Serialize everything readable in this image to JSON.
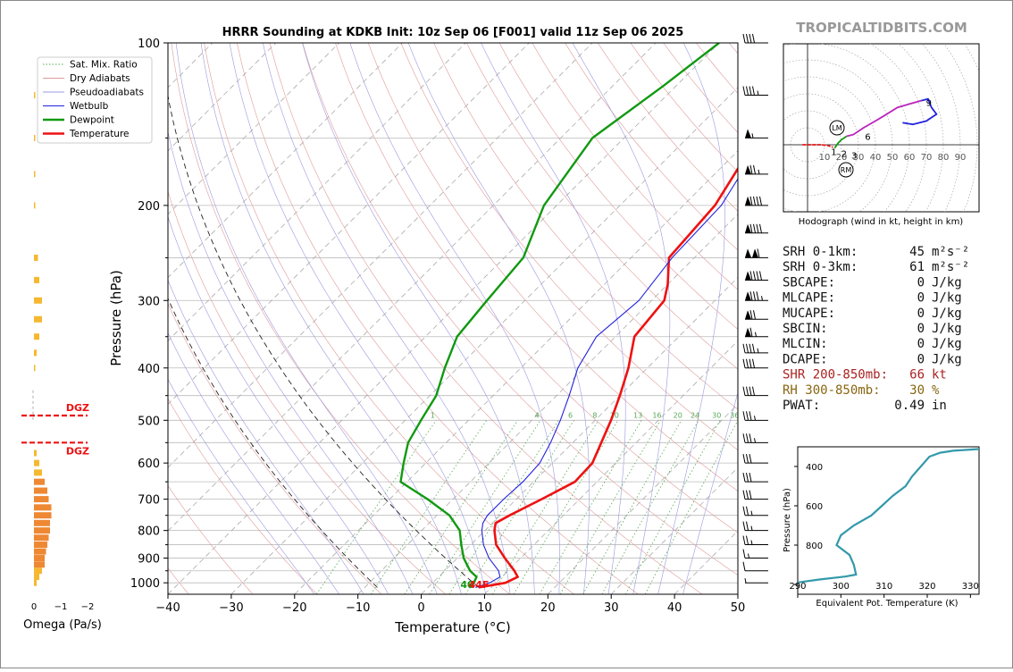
{
  "title": "HRRR Sounding at KDKB Init: 10z Sep 06 [F001] valid 11z Sep 06 2025",
  "watermark": "TROPICALTIDBITS.COM",
  "colors": {
    "temperature": "#ee1111",
    "dewpoint": "#119911",
    "wetbulb": "#2222dd",
    "dry_adiabat": "#e09a9a",
    "pseudo_adiabat": "#9a9ae0",
    "mixing_ratio": "#55aa55",
    "dgz": "#ee1111",
    "omega_bar": "#f0a030",
    "theta_e": "#3399aa",
    "shr": "#aa2222",
    "rh": "#886611"
  },
  "legend": [
    {
      "label": "Sat. Mix. Ratio",
      "style": "dotted",
      "color": "#55aa55"
    },
    {
      "label": "Dry Adiabats",
      "style": "thin",
      "color": "#e09a9a"
    },
    {
      "label": "Pseudoadiabats",
      "style": "thin",
      "color": "#9a9ae0"
    },
    {
      "label": "Wetbulb",
      "style": "thin",
      "color": "#2222dd"
    },
    {
      "label": "Dewpoint",
      "style": "thick",
      "color": "#119911"
    },
    {
      "label": "Temperature",
      "style": "thick",
      "color": "#ee1111"
    }
  ],
  "skewt": {
    "xlabel": "Temperature (°C)",
    "ylabel": "Pressure (hPa)",
    "xlim": [
      -40,
      50
    ],
    "ylim_hpa": [
      1050,
      100
    ],
    "x_ticks": [
      -40,
      -30,
      -20,
      -10,
      0,
      10,
      20,
      30,
      40,
      50
    ],
    "x_tick_labels": [
      "−40",
      "−30",
      "−20",
      "−10",
      "0",
      "10",
      "20",
      "30",
      "40",
      "50"
    ],
    "p_ticks": [
      1000,
      900,
      800,
      700,
      600,
      500,
      400,
      300,
      200,
      100
    ],
    "p_tick_labels": [
      "1000",
      "900",
      "800",
      "700",
      "600",
      "500",
      "400",
      "300",
      "200",
      "100"
    ],
    "mixing_ratio_labels": [
      "1",
      "4",
      "6",
      "8",
      "10",
      "13",
      "16",
      "20",
      "24",
      "30",
      "36"
    ],
    "lcl_label": "4044F"
  },
  "chart_data": [
    {
      "type": "line",
      "name": "skew-t",
      "x_axis": "temperature_C",
      "y_axis": "pressure_hPa",
      "series": [
        {
          "name": "Temperature",
          "points": [
            [
              1020,
              8
            ],
            [
              1000,
              11.5
            ],
            [
              975,
              12.5
            ],
            [
              950,
              11
            ],
            [
              900,
              7.5
            ],
            [
              850,
              4
            ],
            [
              800,
              1.5
            ],
            [
              775,
              0.5
            ],
            [
              750,
              1.5
            ],
            [
              700,
              4
            ],
            [
              650,
              6.5
            ],
            [
              600,
              6.3
            ],
            [
              550,
              4.5
            ],
            [
              500,
              2.5
            ],
            [
              450,
              0
            ],
            [
              400,
              -3
            ],
            [
              350,
              -7
            ],
            [
              300,
              -8
            ],
            [
              280,
              -10
            ],
            [
              250,
              -14
            ],
            [
              200,
              -15
            ],
            [
              150,
              -19
            ],
            [
              120,
              -21
            ],
            [
              100,
              -24
            ]
          ]
        },
        {
          "name": "Dewpoint",
          "points": [
            [
              1020,
              6.5
            ],
            [
              1000,
              6.5
            ],
            [
              975,
              6
            ],
            [
              950,
              4
            ],
            [
              900,
              1
            ],
            [
              850,
              -1.5
            ],
            [
              800,
              -4
            ],
            [
              750,
              -8
            ],
            [
              700,
              -14
            ],
            [
              650,
              -21
            ],
            [
              600,
              -23.5
            ],
            [
              550,
              -26
            ],
            [
              500,
              -27.5
            ],
            [
              450,
              -29
            ],
            [
              400,
              -32
            ],
            [
              350,
              -35
            ],
            [
              300,
              -36
            ],
            [
              250,
              -37
            ],
            [
              200,
              -42
            ],
            [
              150,
              -45
            ],
            [
              120,
              -42
            ],
            [
              100,
              -40
            ]
          ]
        },
        {
          "name": "Wetbulb",
          "points": [
            [
              1020,
              7.5
            ],
            [
              1000,
              9
            ],
            [
              975,
              9.7
            ],
            [
              950,
              8.5
            ],
            [
              900,
              5
            ],
            [
              850,
              2
            ],
            [
              800,
              -0.5
            ],
            [
              775,
              -1.5
            ],
            [
              750,
              -2
            ],
            [
              700,
              -2
            ],
            [
              650,
              -1.7
            ],
            [
              600,
              -2
            ],
            [
              550,
              -3.5
            ],
            [
              500,
              -5.5
            ],
            [
              450,
              -8
            ],
            [
              400,
              -11
            ],
            [
              350,
              -13
            ],
            [
              300,
              -12
            ],
            [
              250,
              -13.5
            ],
            [
              200,
              -14
            ],
            [
              150,
              -18
            ],
            [
              120,
              -20
            ],
            [
              100,
              -23
            ]
          ]
        }
      ],
      "wind_barbs_kt": [
        {
          "p": 1000,
          "speed": 5
        },
        {
          "p": 950,
          "speed": 10
        },
        {
          "p": 900,
          "speed": 15
        },
        {
          "p": 850,
          "speed": 25
        },
        {
          "p": 800,
          "speed": 25
        },
        {
          "p": 750,
          "speed": 25
        },
        {
          "p": 700,
          "speed": 30
        },
        {
          "p": 650,
          "speed": 30
        },
        {
          "p": 600,
          "speed": 30
        },
        {
          "p": 550,
          "speed": 35
        },
        {
          "p": 500,
          "speed": 35
        },
        {
          "p": 450,
          "speed": 40
        },
        {
          "p": 400,
          "speed": 40
        },
        {
          "p": 375,
          "speed": 45
        },
        {
          "p": 350,
          "speed": 65
        },
        {
          "p": 325,
          "speed": 70
        },
        {
          "p": 300,
          "speed": 85
        },
        {
          "p": 275,
          "speed": 90
        },
        {
          "p": 250,
          "speed": 110
        },
        {
          "p": 225,
          "speed": 90
        },
        {
          "p": 200,
          "speed": 90
        },
        {
          "p": 175,
          "speed": 75
        },
        {
          "p": 150,
          "speed": 55
        },
        {
          "p": 125,
          "speed": 45
        },
        {
          "p": 100,
          "speed": 40
        }
      ]
    },
    {
      "type": "bar",
      "name": "omega",
      "xlabel": "Omega (Pa/s)",
      "x_ticks": [
        0,
        -1,
        -2
      ],
      "x_tick_labels": [
        "0",
        "−1",
        "−2"
      ],
      "dgz_label": "DGZ",
      "dgz_levels_hpa": [
        490,
        550
      ],
      "points": [
        [
          1000,
          0.1
        ],
        [
          975,
          0.2
        ],
        [
          950,
          0.3
        ],
        [
          925,
          0.4
        ],
        [
          900,
          0.4
        ],
        [
          875,
          0.45
        ],
        [
          850,
          0.5
        ],
        [
          825,
          0.55
        ],
        [
          800,
          0.6
        ],
        [
          775,
          0.6
        ],
        [
          750,
          0.65
        ],
        [
          725,
          0.65
        ],
        [
          700,
          0.55
        ],
        [
          675,
          0.5
        ],
        [
          650,
          0.4
        ],
        [
          625,
          0.3
        ],
        [
          600,
          0.2
        ],
        [
          575,
          0.1
        ],
        [
          400,
          0.05
        ],
        [
          375,
          0.1
        ],
        [
          350,
          0.2
        ],
        [
          325,
          0.3
        ],
        [
          300,
          0.3
        ],
        [
          275,
          0.2
        ],
        [
          250,
          0.15
        ],
        [
          200,
          0.03
        ],
        [
          175,
          0.05
        ],
        [
          150,
          0.05
        ],
        [
          125,
          0.05
        ]
      ]
    },
    {
      "type": "line",
      "name": "hodograph",
      "xlabel": "Hodograph (wind in kt, height in km)",
      "ring_labels": [
        "10",
        "20",
        "30",
        "40",
        "50",
        "60",
        "70",
        "80",
        "90"
      ],
      "height_labels": [
        "1",
        "2",
        "3",
        "6",
        "9"
      ],
      "lm_label": "LM",
      "rm_label": "RM",
      "segments": [
        {
          "color": "#ee1111",
          "points": [
            [
              -3,
              0
            ],
            [
              8,
              0
            ],
            [
              12,
              -0.5
            ],
            [
              15,
              -1.5
            ]
          ]
        },
        {
          "color": "#119911",
          "points": [
            [
              16,
              -2
            ],
            [
              18,
              1
            ],
            [
              20,
              3
            ],
            [
              23,
              5
            ]
          ]
        },
        {
          "color": "#bb22bb",
          "points": [
            [
              23,
              5
            ],
            [
              27,
              6
            ],
            [
              33,
              10
            ],
            [
              40,
              14
            ],
            [
              45,
              17
            ],
            [
              53,
              22
            ],
            [
              60,
              24
            ],
            [
              67,
              26
            ]
          ]
        },
        {
          "color": "#2222dd",
          "points": [
            [
              67,
              26
            ],
            [
              71,
              27
            ],
            [
              73,
              22
            ],
            [
              76,
              18
            ],
            [
              70,
              14
            ],
            [
              62,
              12
            ],
            [
              56,
              13
            ]
          ]
        }
      ]
    },
    {
      "type": "line",
      "name": "theta-e",
      "xlabel": "Equivalent Pot. Temperature (K)",
      "ylabel": "Pressure (hPa)",
      "xlim": [
        290,
        332
      ],
      "ylim": [
        1050,
        300
      ],
      "x_ticks": [
        290,
        300,
        310,
        320,
        330
      ],
      "y_ticks": [
        400,
        600,
        800
      ],
      "points": [
        [
          1000,
          285
        ],
        [
          990,
          290
        ],
        [
          975,
          295
        ],
        [
          960,
          301
        ],
        [
          950,
          303.5
        ],
        [
          900,
          303
        ],
        [
          850,
          302
        ],
        [
          800,
          299
        ],
        [
          750,
          300
        ],
        [
          700,
          303
        ],
        [
          650,
          307
        ],
        [
          600,
          309.5
        ],
        [
          550,
          312
        ],
        [
          500,
          315
        ],
        [
          450,
          316.5
        ],
        [
          400,
          318.5
        ],
        [
          350,
          320.5
        ],
        [
          330,
          323
        ],
        [
          320,
          326
        ],
        [
          310,
          333
        ]
      ]
    }
  ],
  "stats": [
    {
      "label": "SRH 0-1km:",
      "value": "45",
      "unit": "m²s⁻²",
      "color": "#111111"
    },
    {
      "label": "SRH 0-3km:",
      "value": "61",
      "unit": "m²s⁻²",
      "color": "#111111"
    },
    {
      "label": "SBCAPE:",
      "value": "0",
      "unit": "J/kg",
      "color": "#111111"
    },
    {
      "label": "MLCAPE:",
      "value": "0",
      "unit": "J/kg",
      "color": "#111111"
    },
    {
      "label": "MUCAPE:",
      "value": "0",
      "unit": "J/kg",
      "color": "#111111"
    },
    {
      "label": "SBCIN:",
      "value": "0",
      "unit": "J/kg",
      "color": "#111111"
    },
    {
      "label": "MLCIN:",
      "value": "0",
      "unit": "J/kg",
      "color": "#111111"
    },
    {
      "label": "DCAPE:",
      "value": "0",
      "unit": "J/kg",
      "color": "#111111"
    },
    {
      "label": "SHR 200-850mb:",
      "value": "66",
      "unit": "kt",
      "color": "#aa2222"
    },
    {
      "label": "RH 300-850mb:",
      "value": "30",
      "unit": "%",
      "color": "#886611"
    },
    {
      "label": "PWAT:",
      "value": "0.49",
      "unit": "in",
      "color": "#111111"
    }
  ]
}
